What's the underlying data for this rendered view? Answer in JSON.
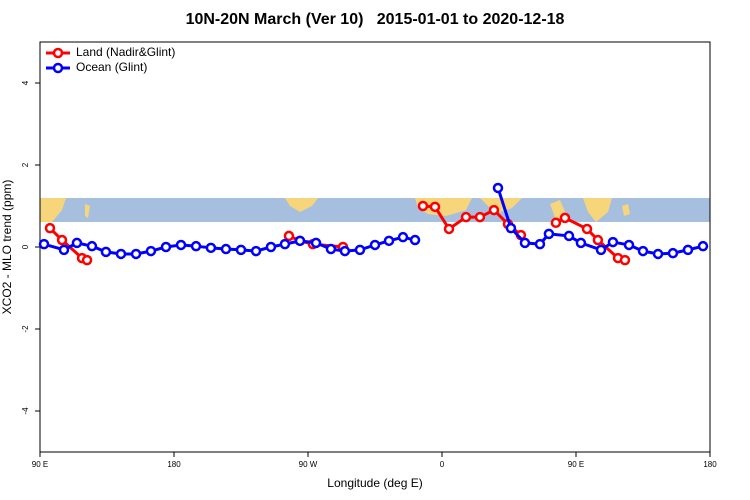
{
  "chart_data": {
    "type": "line",
    "title": "10N-20N March (Ver 10)   2015-01-01 to 2020-12-18",
    "xlabel": "Longitude (deg E)",
    "ylabel": "XCO2 - MLO trend (ppm)",
    "xlim": [
      90,
      540
    ],
    "ylim": [
      -5,
      5
    ],
    "xticks": [
      {
        "value": 90,
        "label": "90 E"
      },
      {
        "value": 180,
        "label": "180"
      },
      {
        "value": 270,
        "label": "90 W"
      },
      {
        "value": 360,
        "label": "0"
      },
      {
        "value": 450,
        "label": "90 E"
      },
      {
        "value": 540,
        "label": "180"
      }
    ],
    "yticks": [
      -4,
      -2,
      0,
      2,
      4
    ],
    "legend": "top-left",
    "series": [
      {
        "name": "Land (Nadir&Glint)",
        "color": "#ff0000",
        "x": [
          96.7,
          104.8,
          118.2,
          121.6,
          null,
          257.2,
          264.6,
          273.3,
          293.5,
          null,
          347.2,
          355.3,
          364.7,
          376.1,
          385.5,
          394.9,
          404.3,
          413.0,
          null,
          436.5,
          442.6,
          457.4,
          464.7,
          478.2,
          482.9
        ],
        "values": [
          0.46,
          0.17,
          -0.27,
          -0.32,
          null,
          0.27,
          0.15,
          0.07,
          0.0,
          null,
          1.0,
          0.98,
          0.44,
          0.73,
          0.73,
          0.9,
          0.56,
          0.29,
          null,
          0.59,
          0.71,
          0.44,
          0.17,
          -0.27,
          -0.32
        ]
      },
      {
        "name": "Ocean (Glint)",
        "color": "#0000ff",
        "x": [
          92.7,
          106.1,
          114.8,
          124.9,
          134.3,
          144.4,
          154.5,
          164.5,
          174.6,
          184.7,
          194.8,
          204.8,
          214.9,
          225.0,
          235.1,
          245.1,
          254.5,
          264.6,
          275.4,
          285.4,
          294.8,
          304.9,
          315.0,
          324.4,
          333.8,
          341.9,
          null,
          397.6,
          406.3,
          415.7,
          425.8,
          431.8,
          445.3,
          453.3,
          466.8,
          474.8,
          485.6,
          495.0,
          505.1,
          515.1,
          525.2,
          535.3
        ],
        "values": [
          0.07,
          -0.07,
          0.1,
          0.02,
          -0.12,
          -0.17,
          -0.17,
          -0.1,
          0.0,
          0.05,
          0.02,
          -0.02,
          -0.05,
          -0.07,
          -0.1,
          0.0,
          0.07,
          0.15,
          0.1,
          -0.05,
          -0.1,
          -0.07,
          0.05,
          0.15,
          0.24,
          0.17,
          null,
          1.44,
          0.46,
          0.1,
          0.07,
          0.32,
          0.27,
          0.1,
          -0.07,
          0.12,
          0.05,
          -0.1,
          -0.17,
          -0.15,
          -0.07,
          0.02
        ]
      }
    ]
  }
}
